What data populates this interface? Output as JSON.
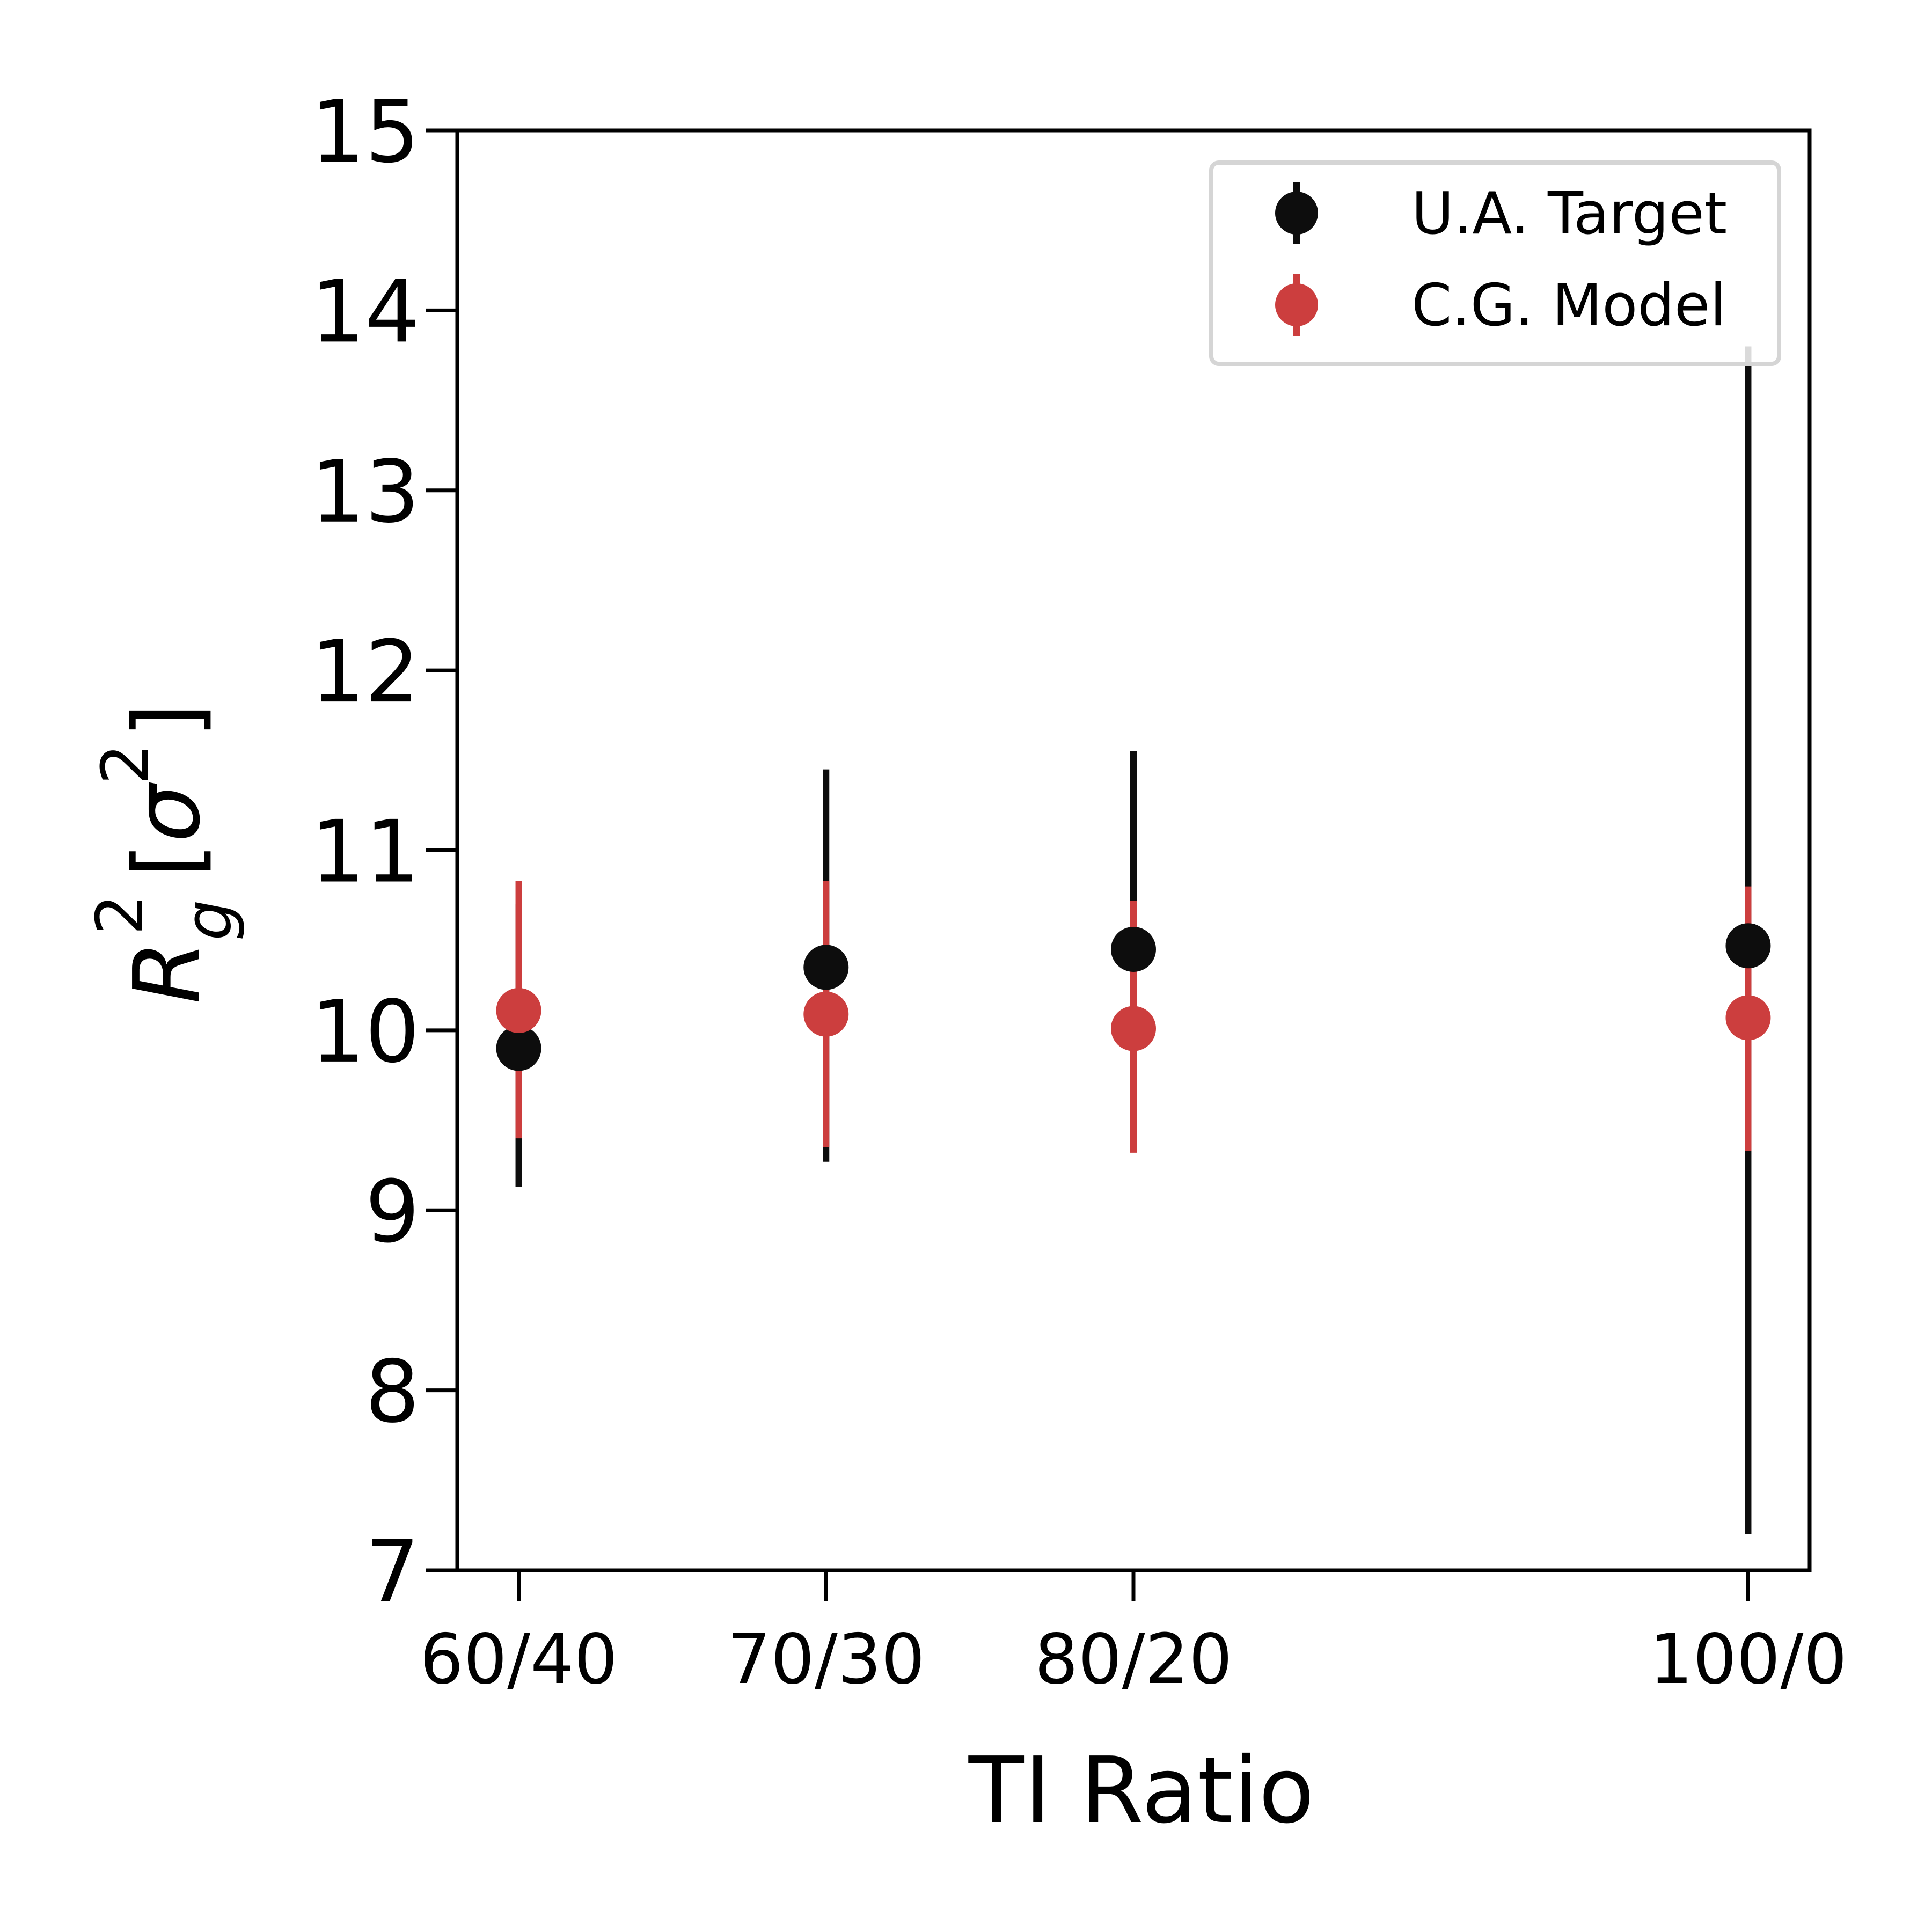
{
  "chart_data": {
    "type": "scatter",
    "title": "",
    "xlabel": "TI Ratio",
    "ylabel": {
      "base": "R",
      "sub": "g",
      "sup": "2",
      "unit_open": "[",
      "unit_symbol": "σ",
      "unit_sup": "2",
      "unit_close": "]"
    },
    "categories": [
      "60/40",
      "70/30",
      "80/20",
      "100/0"
    ],
    "x": [
      60,
      70,
      80,
      100
    ],
    "xlim": [
      58,
      102
    ],
    "ylim": [
      7,
      15
    ],
    "yticks": [
      7,
      8,
      9,
      10,
      11,
      12,
      13,
      14,
      15
    ],
    "ytick_labels": [
      "7",
      "8",
      "9",
      "10",
      "11",
      "12",
      "13",
      "14",
      "15"
    ],
    "grid": false,
    "legend_position": "top-right",
    "series": [
      {
        "name": "U.A. Target",
        "color": "#0d0d0d",
        "values": [
          9.9,
          10.35,
          10.45,
          10.47
        ],
        "err_low": [
          9.13,
          9.27,
          9.35,
          7.2
        ],
        "err_high": [
          10.7,
          11.45,
          11.55,
          13.8
        ]
      },
      {
        "name": "C.G. Model",
        "color": "#cc3e3e",
        "values": [
          10.11,
          10.09,
          10.01,
          10.07
        ],
        "err_low": [
          9.4,
          9.35,
          9.32,
          9.33
        ],
        "err_high": [
          10.83,
          10.83,
          10.72,
          10.8
        ]
      }
    ]
  }
}
